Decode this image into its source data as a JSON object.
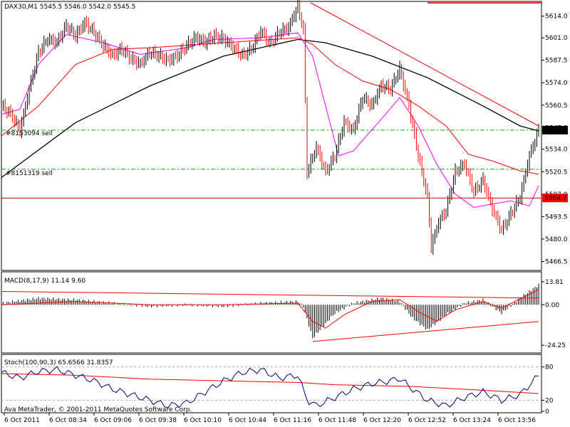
{
  "window": {
    "title": "DAX30,M1  5545.5 5546.0 5542.0 5545.5",
    "copyright": "Ava MetaTrader, © 2001-2011 MetaQuotes Software Corp."
  },
  "colors": {
    "bull_bar": "#000000",
    "bear_bar": "#ff0000",
    "ma_fast": "#ff00ff",
    "ma_mid": "#ff0000",
    "ma_slow": "#000000",
    "trend_line": "#ff0000",
    "order_line": "#00aa00",
    "stop_line": "#cc0000",
    "stoch_main": "#000080",
    "stoch_signal": "#ff0000"
  },
  "chart_data": [
    {
      "type": "ohlc",
      "name": "price",
      "ylim": [
        5462,
        5622
      ],
      "y_ticks": [
        "5614.0",
        "5601.0",
        "5587.5",
        "5574.0",
        "5560.5",
        "5547.0",
        "5534.0",
        "5520.5",
        "5507.0",
        "5493.5",
        "5480.0",
        "5466.5"
      ],
      "current_price": "5545.5",
      "red_level": "5504.7",
      "order_labels": [
        "#8153094 sell",
        "#8151319 sell"
      ],
      "order_levels": [
        5545.5,
        5522.0
      ],
      "x_labels": [
        "6 Oct 2011",
        "6 Oct 08:34",
        "6 Oct 09:06",
        "6 Oct 09:38",
        "6 Oct 10:10",
        "6 Oct 10:44",
        "6 Oct 11:16",
        "6 Oct 11:48",
        "6 Oct 12:20",
        "6 Oct 12:52",
        "6 Oct 13:24",
        "6 Oct 13:56"
      ],
      "close_path": [
        [
          0,
          5560
        ],
        [
          5,
          5555
        ],
        [
          10,
          5545
        ],
        [
          15,
          5570
        ],
        [
          20,
          5592
        ],
        [
          25,
          5600
        ],
        [
          30,
          5598
        ],
        [
          35,
          5608
        ],
        [
          40,
          5602
        ],
        [
          45,
          5610
        ],
        [
          50,
          5604
        ],
        [
          55,
          5596
        ],
        [
          60,
          5590
        ],
        [
          65,
          5594
        ],
        [
          70,
          5588
        ],
        [
          75,
          5585
        ],
        [
          80,
          5592
        ],
        [
          85,
          5590
        ],
        [
          90,
          5587
        ],
        [
          95,
          5590
        ],
        [
          100,
          5596
        ],
        [
          105,
          5601
        ],
        [
          110,
          5598
        ],
        [
          115,
          5602
        ],
        [
          120,
          5600
        ],
        [
          125,
          5595
        ],
        [
          130,
          5590
        ],
        [
          135,
          5594
        ],
        [
          140,
          5605
        ],
        [
          145,
          5597
        ],
        [
          150,
          5604
        ],
        [
          155,
          5607
        ],
        [
          160,
          5620
        ],
        [
          163,
          5605
        ],
        [
          165,
          5520
        ],
        [
          170,
          5535
        ],
        [
          175,
          5520
        ],
        [
          180,
          5530
        ],
        [
          185,
          5550
        ],
        [
          190,
          5545
        ],
        [
          195,
          5565
        ],
        [
          200,
          5560
        ],
        [
          205,
          5572
        ],
        [
          210,
          5570
        ],
        [
          215,
          5582
        ],
        [
          220,
          5560
        ],
        [
          225,
          5530
        ],
        [
          230,
          5505
        ],
        [
          232,
          5475
        ],
        [
          236,
          5490
        ],
        [
          240,
          5497
        ],
        [
          245,
          5520
        ],
        [
          250,
          5525
        ],
        [
          255,
          5508
        ],
        [
          260,
          5515
        ],
        [
          265,
          5498
        ],
        [
          270,
          5485
        ],
        [
          275,
          5495
        ],
        [
          280,
          5505
        ],
        [
          285,
          5530
        ],
        [
          290,
          5545
        ]
      ],
      "ma_fast": [
        [
          0,
          5555
        ],
        [
          10,
          5558
        ],
        [
          20,
          5585
        ],
        [
          35,
          5603
        ],
        [
          55,
          5598
        ],
        [
          75,
          5591
        ],
        [
          100,
          5595
        ],
        [
          115,
          5600
        ],
        [
          140,
          5601
        ],
        [
          160,
          5604
        ],
        [
          168,
          5590
        ],
        [
          175,
          5560
        ],
        [
          182,
          5530
        ],
        [
          190,
          5533
        ],
        [
          205,
          5552
        ],
        [
          215,
          5565
        ],
        [
          225,
          5548
        ],
        [
          235,
          5525
        ],
        [
          245,
          5507
        ],
        [
          255,
          5499
        ],
        [
          265,
          5501
        ],
        [
          275,
          5503
        ],
        [
          285,
          5500
        ],
        [
          290,
          5512
        ]
      ],
      "ma_mid": [
        [
          0,
          5542
        ],
        [
          20,
          5560
        ],
        [
          40,
          5585
        ],
        [
          60,
          5594
        ],
        [
          80,
          5595
        ],
        [
          120,
          5598
        ],
        [
          160,
          5601
        ],
        [
          168,
          5597
        ],
        [
          180,
          5585
        ],
        [
          195,
          5575
        ],
        [
          210,
          5570
        ],
        [
          225,
          5560
        ],
        [
          240,
          5548
        ],
        [
          252,
          5531
        ],
        [
          265,
          5527
        ],
        [
          280,
          5521
        ],
        [
          290,
          5519
        ]
      ],
      "ma_slow": [
        [
          0,
          5517
        ],
        [
          40,
          5550
        ],
        [
          80,
          5572
        ],
        [
          120,
          5590
        ],
        [
          160,
          5600
        ],
        [
          175,
          5598
        ],
        [
          200,
          5590
        ],
        [
          230,
          5577
        ],
        [
          260,
          5560
        ],
        [
          280,
          5548
        ],
        [
          290,
          5545
        ]
      ],
      "trendline": [
        [
          167,
          5622
        ],
        [
          290,
          5548
        ]
      ]
    },
    {
      "type": "bar",
      "name": "MACD",
      "label": "MACD(8,17,9) 11.14 9.60",
      "ylim": [
        -28,
        18
      ],
      "y_ticks": [
        "13.81",
        "0.00",
        "-24.25"
      ],
      "histogram_path": [
        [
          0,
          1
        ],
        [
          20,
          4
        ],
        [
          40,
          3
        ],
        [
          60,
          1
        ],
        [
          80,
          -1
        ],
        [
          100,
          0
        ],
        [
          120,
          -1
        ],
        [
          140,
          1
        ],
        [
          160,
          2
        ],
        [
          163,
          -1
        ],
        [
          168,
          -20
        ],
        [
          172,
          -15
        ],
        [
          180,
          -5
        ],
        [
          190,
          1
        ],
        [
          205,
          4
        ],
        [
          215,
          2
        ],
        [
          222,
          -8
        ],
        [
          230,
          -15
        ],
        [
          240,
          -6
        ],
        [
          250,
          1
        ],
        [
          260,
          3
        ],
        [
          270,
          -5
        ],
        [
          280,
          4
        ],
        [
          290,
          12
        ]
      ],
      "signal_path": [
        [
          0,
          0
        ],
        [
          40,
          2
        ],
        [
          80,
          0
        ],
        [
          120,
          0
        ],
        [
          160,
          1
        ],
        [
          168,
          -10
        ],
        [
          175,
          -14
        ],
        [
          185,
          -6
        ],
        [
          200,
          2
        ],
        [
          215,
          3
        ],
        [
          225,
          -4
        ],
        [
          235,
          -10
        ],
        [
          245,
          -3
        ],
        [
          260,
          2
        ],
        [
          270,
          -2
        ],
        [
          290,
          9
        ]
      ],
      "trendlines": [
        [
          [
            0,
            8
          ],
          [
            290,
            4
          ]
        ],
        [
          [
            168,
            -22
          ],
          [
            290,
            -10
          ]
        ]
      ]
    },
    {
      "type": "line",
      "name": "Stochastic",
      "label": "Stoch(100,90,3) 65.6566 31.8357",
      "ylim": [
        0,
        100
      ],
      "y_ticks": [
        "80",
        "20",
        "0"
      ],
      "main_path": [
        [
          0,
          70
        ],
        [
          10,
          60
        ],
        [
          20,
          72
        ],
        [
          30,
          75
        ],
        [
          40,
          65
        ],
        [
          50,
          55
        ],
        [
          60,
          40
        ],
        [
          70,
          30
        ],
        [
          80,
          20
        ],
        [
          90,
          10
        ],
        [
          100,
          15
        ],
        [
          110,
          35
        ],
        [
          120,
          55
        ],
        [
          130,
          70
        ],
        [
          140,
          75
        ],
        [
          150,
          60
        ],
        [
          160,
          65
        ],
        [
          165,
          20
        ],
        [
          170,
          10
        ],
        [
          180,
          25
        ],
        [
          190,
          40
        ],
        [
          200,
          50
        ],
        [
          210,
          55
        ],
        [
          215,
          60
        ],
        [
          220,
          45
        ],
        [
          230,
          20
        ],
        [
          240,
          10
        ],
        [
          250,
          25
        ],
        [
          260,
          35
        ],
        [
          270,
          20
        ],
        [
          280,
          30
        ],
        [
          290,
          65
        ]
      ],
      "signal_path": [
        [
          0,
          68
        ],
        [
          40,
          65
        ],
        [
          80,
          58
        ],
        [
          120,
          55
        ],
        [
          160,
          52
        ],
        [
          180,
          48
        ],
        [
          220,
          45
        ],
        [
          260,
          38
        ],
        [
          290,
          32
        ]
      ]
    }
  ]
}
